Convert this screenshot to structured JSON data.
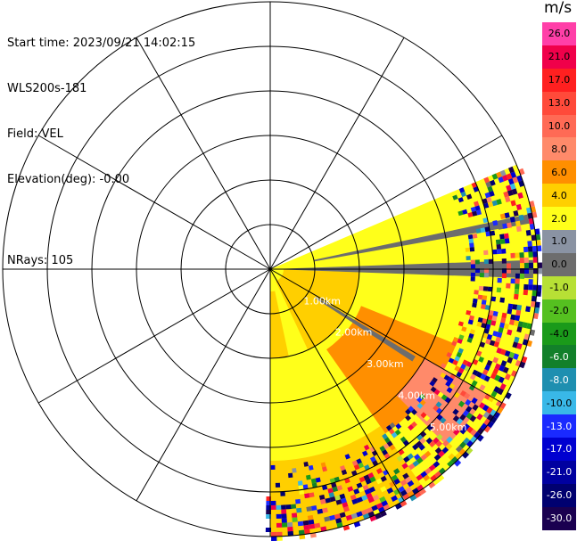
{
  "info": {
    "start_time_line": "Start time: 2023/09/21 14:02:15",
    "instrument_line": "WLS200s-181",
    "field_line": "Field: VEL",
    "elevation_line": "Elevation(deg): -0.00",
    "nrays_line": "NRays: 105"
  },
  "colorbar": {
    "unit": "m/s",
    "entries": [
      {
        "label": "26.0",
        "color": "#ff3fa8",
        "text_color": "#000000"
      },
      {
        "label": "21.0",
        "color": "#f0004a",
        "text_color": "#000000"
      },
      {
        "label": "17.0",
        "color": "#ff2020",
        "text_color": "#000000"
      },
      {
        "label": "13.0",
        "color": "#ff4a3a",
        "text_color": "#000000"
      },
      {
        "label": "10.0",
        "color": "#ff6a55",
        "text_color": "#000000"
      },
      {
        "label": "8.0",
        "color": "#ff8a6a",
        "text_color": "#000000"
      },
      {
        "label": "6.0",
        "color": "#ff8f00",
        "text_color": "#000000"
      },
      {
        "label": "4.0",
        "color": "#ffcf00",
        "text_color": "#000000"
      },
      {
        "label": "2.0",
        "color": "#ffff1a",
        "text_color": "#000000"
      },
      {
        "label": "1.0",
        "color": "#8a93a3",
        "text_color": "#000000"
      },
      {
        "label": "0.0",
        "color": "#6d6d6d",
        "text_color": "#000000"
      },
      {
        "label": "-1.0",
        "color": "#b7e035",
        "text_color": "#000000"
      },
      {
        "label": "-2.0",
        "color": "#55c020",
        "text_color": "#000000"
      },
      {
        "label": "-4.0",
        "color": "#1a9a1a",
        "text_color": "#000000"
      },
      {
        "label": "-6.0",
        "color": "#12802a",
        "text_color": "#ffffff"
      },
      {
        "label": "-8.0",
        "color": "#1e8fb0",
        "text_color": "#ffffff"
      },
      {
        "label": "-10.0",
        "color": "#39b8e8",
        "text_color": "#000000"
      },
      {
        "label": "-13.0",
        "color": "#1a2aff",
        "text_color": "#ffffff"
      },
      {
        "label": "-17.0",
        "color": "#0000d0",
        "text_color": "#ffffff"
      },
      {
        "label": "-21.0",
        "color": "#0000a0",
        "text_color": "#ffffff"
      },
      {
        "label": "-26.0",
        "color": "#000070",
        "text_color": "#ffffff"
      },
      {
        "label": "-30.0",
        "color": "#1a0050",
        "text_color": "#ffffff"
      }
    ]
  },
  "chart_data": {
    "type": "heatmap",
    "projection": "polar (PPI)",
    "field": "VEL",
    "units": "m/s",
    "range_rings": [
      "1.00km",
      "2.00km",
      "3.00km",
      "4.00km",
      "5.00km"
    ],
    "max_range_km": 6,
    "azimuth_sector_deg": [
      67,
      180
    ],
    "colors": {
      "grid": "#000000",
      "ring_label": "#ffffff"
    },
    "sectors": [
      {
        "az": [
          67,
          180
        ],
        "r_km": [
          0,
          6
        ],
        "value": 3.0
      },
      {
        "az": [
          92,
          155
        ],
        "r_km": [
          0.3,
          2.0
        ],
        "value": 5.0
      },
      {
        "az": [
          112,
          145
        ],
        "r_km": [
          2.2,
          4.5
        ],
        "value": 7.0
      },
      {
        "az": [
          120,
          135
        ],
        "r_km": [
          4.0,
          5.6
        ],
        "value": 9.0
      },
      {
        "az": [
          145,
          180
        ],
        "r_km": [
          4.3,
          6
        ],
        "value": 5.0
      },
      {
        "az": [
          168,
          180
        ],
        "r_km": [
          0.5,
          2.0
        ],
        "value": 5.0
      },
      {
        "az": [
          88,
          92
        ],
        "r_km": [
          0.3,
          5.9
        ],
        "value": 0.0
      },
      {
        "az": [
          78,
          80
        ],
        "r_km": [
          1.0,
          5.9
        ],
        "value": 0.0
      },
      {
        "az": [
          121,
          123
        ],
        "r_km": [
          1.2,
          3.8
        ],
        "value": 0.0
      }
    ],
    "noise_regions": [
      {
        "az": [
          67,
          180
        ],
        "r_km": [
          4.4,
          6
        ]
      }
    ]
  }
}
